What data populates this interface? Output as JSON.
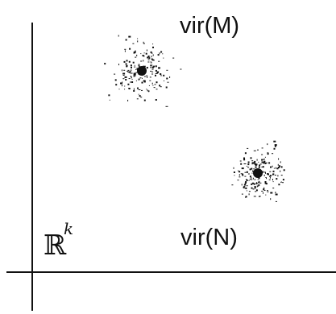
{
  "diagram": {
    "space_symbol": "ℝ",
    "space_superscript": "k",
    "clusters": [
      {
        "label": "vir(M)",
        "points": 190,
        "seed": 7
      },
      {
        "label": "vir(N)",
        "points": 200,
        "seed": 19
      }
    ]
  },
  "colors": {
    "ink": "#111111",
    "background": "#ffffff"
  }
}
